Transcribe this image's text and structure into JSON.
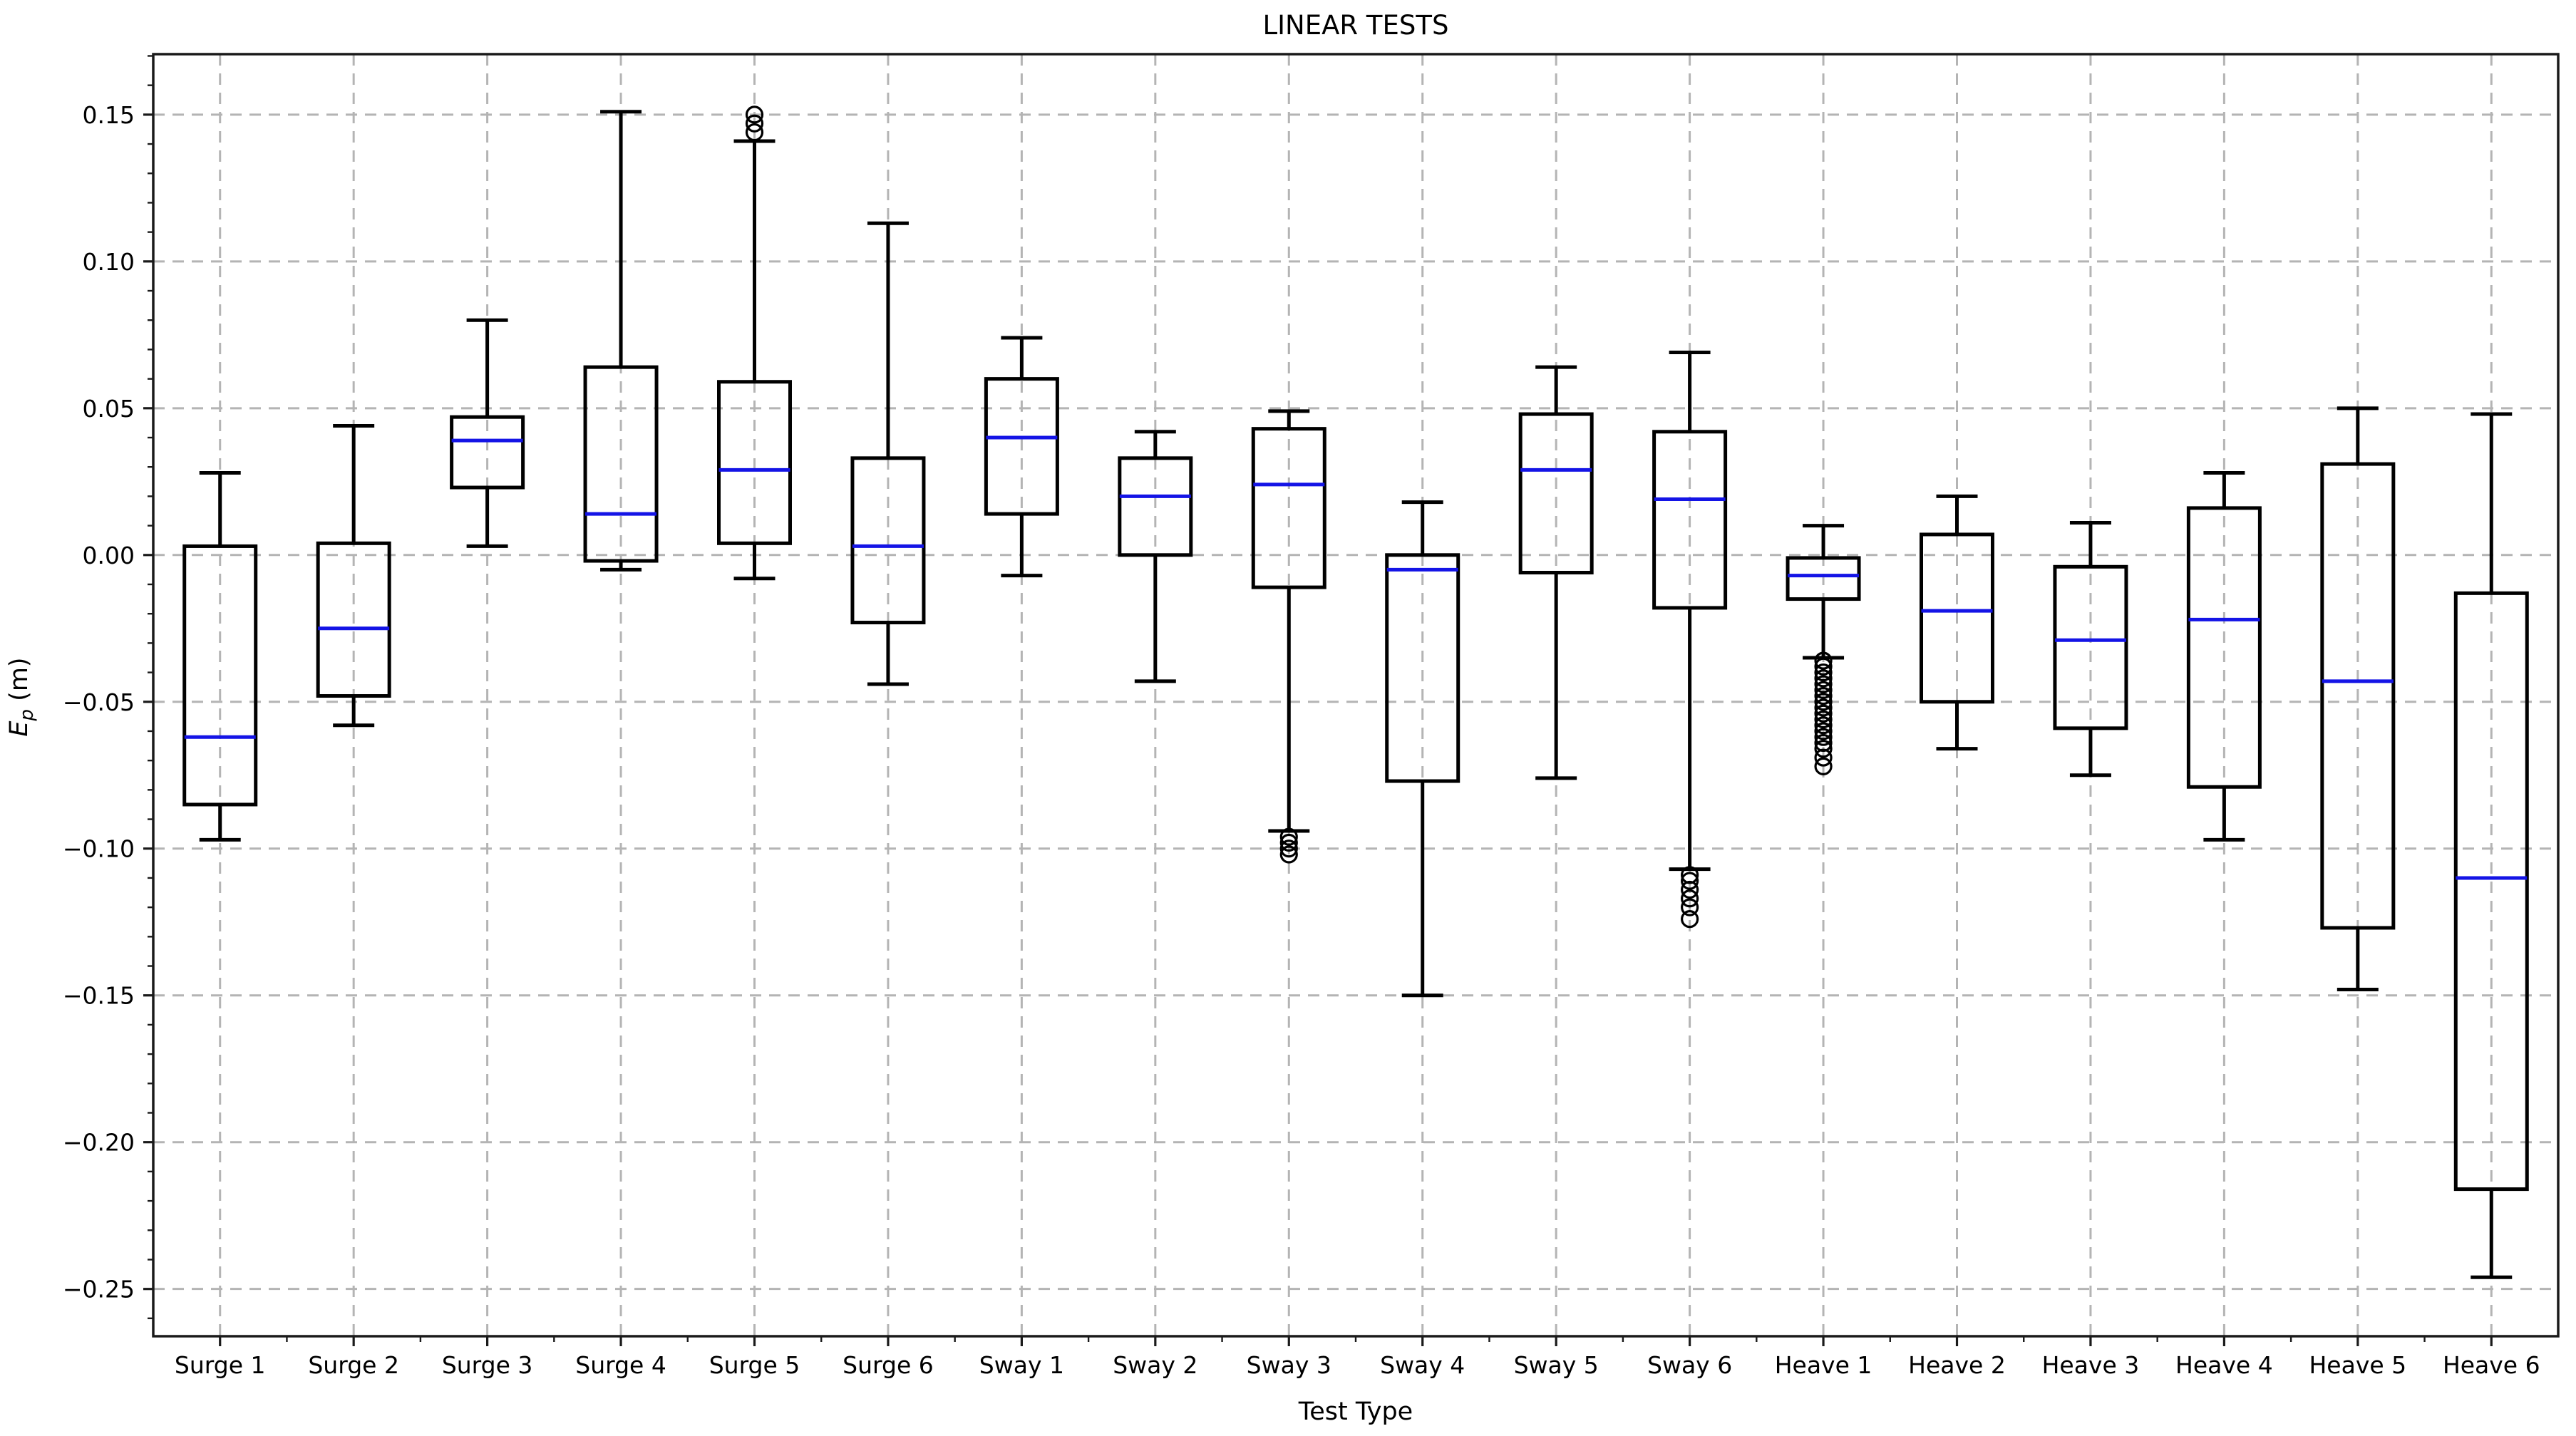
{
  "title": "LINEAR TESTS",
  "axes": {
    "x_label": "Test Type",
    "y_label_e": "E",
    "y_label_sub": "p",
    "y_label_unit": " (m)",
    "ylim": [
      -0.2661,
      0.1706
    ],
    "y_ticks": [
      {
        "value": 0.15,
        "label": "0.15"
      },
      {
        "value": 0.1,
        "label": "0.10"
      },
      {
        "value": 0.05,
        "label": "0.05"
      },
      {
        "value": 0.0,
        "label": "0.00"
      },
      {
        "value": -0.05,
        "label": "−0.05"
      },
      {
        "value": -0.1,
        "label": "−0.10"
      },
      {
        "value": -0.15,
        "label": "−0.15"
      },
      {
        "value": -0.2,
        "label": "−0.20"
      },
      {
        "value": -0.25,
        "label": "−0.25"
      }
    ],
    "y_minor_step": 0.01
  },
  "colors": {
    "median": "#1414e6",
    "box": "#000000",
    "grid": "#b4b4b4",
    "spine": "#1a1a1a"
  },
  "chart_data": {
    "type": "boxplot",
    "title": "LINEAR TESTS",
    "xlabel": "Test Type",
    "ylabel": "E_p (m)",
    "ylim": [
      -0.2661,
      0.1706
    ],
    "grid": true,
    "categories": [
      "Surge 1",
      "Surge 2",
      "Surge 3",
      "Surge 4",
      "Surge 5",
      "Surge 6",
      "Sway 1",
      "Sway 2",
      "Sway 3",
      "Sway 4",
      "Sway 5",
      "Sway 6",
      "Heave 1",
      "Heave 2",
      "Heave 3",
      "Heave 4",
      "Heave 5",
      "Heave 6"
    ],
    "boxes": [
      {
        "label": "Surge 1",
        "whislo": -0.097,
        "q1": -0.085,
        "med": -0.062,
        "q3": 0.003,
        "whishi": 0.028,
        "outliers": []
      },
      {
        "label": "Surge 2",
        "whislo": -0.058,
        "q1": -0.048,
        "med": -0.025,
        "q3": 0.004,
        "whishi": 0.044,
        "outliers": []
      },
      {
        "label": "Surge 3",
        "whislo": 0.003,
        "q1": 0.023,
        "med": 0.039,
        "q3": 0.047,
        "whishi": 0.08,
        "outliers": []
      },
      {
        "label": "Surge 4",
        "whislo": -0.005,
        "q1": -0.002,
        "med": 0.014,
        "q3": 0.064,
        "whishi": 0.151,
        "outliers": []
      },
      {
        "label": "Surge 5",
        "whislo": -0.008,
        "q1": 0.004,
        "med": 0.029,
        "q3": 0.059,
        "whishi": 0.141,
        "outliers": [
          0.144,
          0.147,
          0.15
        ]
      },
      {
        "label": "Surge 6",
        "whislo": -0.044,
        "q1": -0.023,
        "med": 0.003,
        "q3": 0.033,
        "whishi": 0.113,
        "outliers": []
      },
      {
        "label": "Sway 1",
        "whislo": -0.007,
        "q1": 0.014,
        "med": 0.04,
        "q3": 0.06,
        "whishi": 0.074,
        "outliers": []
      },
      {
        "label": "Sway 2",
        "whislo": -0.043,
        "q1": 0.0,
        "med": 0.02,
        "q3": 0.033,
        "whishi": 0.042,
        "outliers": []
      },
      {
        "label": "Sway 3",
        "whislo": -0.094,
        "q1": -0.011,
        "med": 0.024,
        "q3": 0.043,
        "whishi": 0.049,
        "outliers": [
          -0.096,
          -0.098,
          -0.1,
          -0.102
        ]
      },
      {
        "label": "Sway 4",
        "whislo": -0.15,
        "q1": -0.077,
        "med": -0.005,
        "q3": 0.0,
        "whishi": 0.018,
        "outliers": []
      },
      {
        "label": "Sway 5",
        "whislo": -0.076,
        "q1": -0.006,
        "med": 0.029,
        "q3": 0.048,
        "whishi": 0.064,
        "outliers": []
      },
      {
        "label": "Sway 6",
        "whislo": -0.107,
        "q1": -0.018,
        "med": 0.019,
        "q3": 0.042,
        "whishi": 0.069,
        "outliers": [
          -0.109,
          -0.111,
          -0.114,
          -0.117,
          -0.12,
          -0.124
        ]
      },
      {
        "label": "Heave 1",
        "whislo": -0.035,
        "q1": -0.015,
        "med": -0.007,
        "q3": -0.001,
        "whishi": 0.01,
        "outliers": [
          -0.036,
          -0.038,
          -0.04,
          -0.042,
          -0.044,
          -0.046,
          -0.048,
          -0.05,
          -0.052,
          -0.054,
          -0.056,
          -0.058,
          -0.06,
          -0.062,
          -0.064,
          -0.066,
          -0.069,
          -0.072
        ]
      },
      {
        "label": "Heave 2",
        "whislo": -0.066,
        "q1": -0.05,
        "med": -0.019,
        "q3": 0.007,
        "whishi": 0.02,
        "outliers": []
      },
      {
        "label": "Heave 3",
        "whislo": -0.075,
        "q1": -0.059,
        "med": -0.029,
        "q3": -0.004,
        "whishi": 0.011,
        "outliers": []
      },
      {
        "label": "Heave 4",
        "whislo": -0.097,
        "q1": -0.079,
        "med": -0.022,
        "q3": 0.016,
        "whishi": 0.028,
        "outliers": []
      },
      {
        "label": "Heave 5",
        "whislo": -0.148,
        "q1": -0.127,
        "med": -0.043,
        "q3": 0.031,
        "whishi": 0.05,
        "outliers": []
      },
      {
        "label": "Heave 6",
        "whislo": -0.246,
        "q1": -0.216,
        "med": -0.11,
        "q3": -0.013,
        "whishi": 0.048,
        "outliers": []
      }
    ]
  }
}
